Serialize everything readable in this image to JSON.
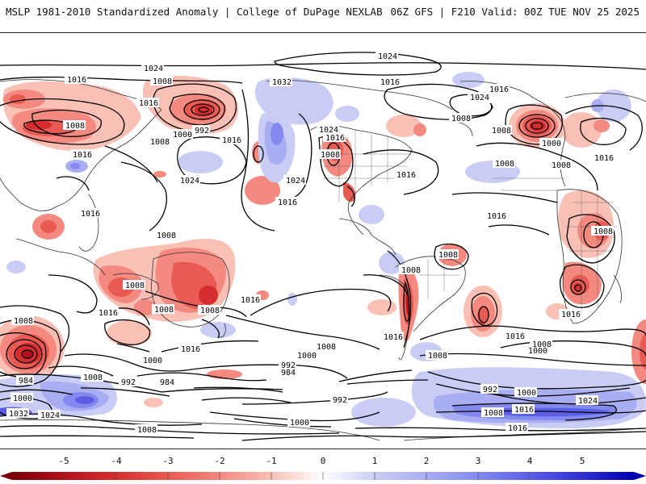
{
  "header": {
    "left_title": "MSLP 1981-2010 Standardized Anomaly | College of DuPage NEXLAB",
    "right_title": "06Z GFS | F210 Valid: 00Z TUE NOV 25 2025"
  },
  "colors": {
    "neg5": "#b5101a",
    "neg4": "#d62e2e",
    "neg3": "#e85a52",
    "neg2": "#f3897f",
    "neg1": "#fac0b6",
    "zero": "#ffffff",
    "pos1": "#c9cdf6",
    "pos2": "#a9aef2",
    "pos3": "#8489ee",
    "pos4": "#5a5fe6",
    "pos5": "#2d2fd6",
    "contour": "#000000",
    "coast": "#333333"
  },
  "legend": {
    "ticks": [
      "-5",
      "-4",
      "-3",
      "-2",
      "-1",
      "0",
      "1",
      "2",
      "3",
      "4",
      "5"
    ]
  },
  "isobar_labels": {
    "l1024a": "1024",
    "l1024b": "1024",
    "l1016a": "1016",
    "l1008a": "1008",
    "l1016b": "1016",
    "l1008b": "1008",
    "l1016c": "1016",
    "l992a": "992",
    "l1000a": "1000",
    "l1008c": "1008",
    "l1016d": "1016",
    "l1024c": "1024",
    "l1032a": "1032",
    "l1016e": "1016",
    "l1024d": "1024",
    "l1016f": "1016",
    "l1016g": "1016",
    "l1024e": "1024",
    "l1008d": "1008",
    "l1008e": "1008",
    "l1016h": "1016",
    "l1000b": "1000",
    "l1016i": "1016",
    "l1024f": "1024",
    "l1016j": "1016",
    "l1016k": "1016",
    "l1008f": "1008",
    "l1008g": "1008",
    "l1008h": "1008",
    "l1008i": "1008",
    "l1016l": "1016",
    "l1008j": "1008",
    "l1008k": "1008",
    "l1016m": "1016",
    "l1016n": "1016",
    "l1016o": "1016",
    "l1008l": "1008",
    "l1016p": "1016",
    "l1016q": "1016",
    "l1008m": "1008",
    "l1000c": "1000",
    "l984a": "984",
    "l1008n": "1008",
    "l992b": "992",
    "l984b": "984",
    "l1000d": "1000",
    "l1032b": "1032",
    "l1024g": "1024",
    "l1008o": "1008",
    "l1000e": "1000",
    "l992c": "992",
    "l984c": "984",
    "l1008p": "1008",
    "l1000f": "1000",
    "l992d": "992",
    "l1008q": "1008",
    "l992e": "992",
    "l1000g": "1000",
    "l1024h": "1024",
    "l1008r": "1008",
    "l1016r": "1016",
    "l1016s": "1016",
    "l1000h": "1000",
    "l1008s": "1008",
    "l1016t": "1016"
  }
}
